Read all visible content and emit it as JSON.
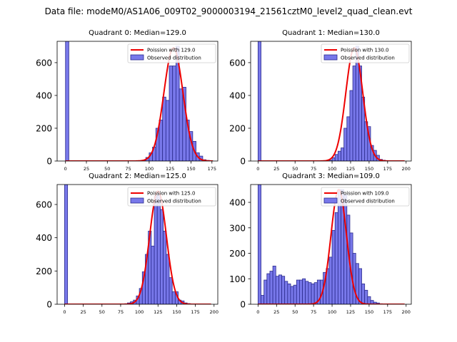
{
  "suptitle": "Data file: modeM0/AS1A06_009T02_9000003194_21561cztM0_level2_quad_clean.evt",
  "colors": {
    "bar_fill": "#7878ea",
    "bar_edge": "#2a2a8c",
    "line": "#ee0000"
  },
  "chart_data": [
    {
      "type": "bar",
      "title": "Quadrant 0: Median=129.0",
      "legend": {
        "line_label": "Poission with 129.0",
        "bar_label": "Observed distribution",
        "location": "upper right"
      },
      "xlim": [
        -10,
        182
      ],
      "ylim": [
        0,
        730
      ],
      "xticks": [
        0,
        25,
        50,
        75,
        100,
        125,
        150,
        175
      ],
      "yticks": [
        0,
        200,
        400,
        600
      ],
      "bin_width": 4,
      "bins": [
        {
          "x": 0,
          "count": 730
        },
        {
          "x": 92,
          "count": 5
        },
        {
          "x": 96,
          "count": 22
        },
        {
          "x": 100,
          "count": 50
        },
        {
          "x": 104,
          "count": 85
        },
        {
          "x": 108,
          "count": 200
        },
        {
          "x": 112,
          "count": 250
        },
        {
          "x": 116,
          "count": 390
        },
        {
          "x": 120,
          "count": 370
        },
        {
          "x": 124,
          "count": 580
        },
        {
          "x": 128,
          "count": 580
        },
        {
          "x": 132,
          "count": 700
        },
        {
          "x": 136,
          "count": 440
        },
        {
          "x": 140,
          "count": 450
        },
        {
          "x": 144,
          "count": 250
        },
        {
          "x": 148,
          "count": 180
        },
        {
          "x": 152,
          "count": 120
        },
        {
          "x": 156,
          "count": 50
        },
        {
          "x": 160,
          "count": 30
        },
        {
          "x": 164,
          "count": 8
        },
        {
          "x": 168,
          "count": 4
        },
        {
          "x": 172,
          "count": 2
        }
      ],
      "poisson": {
        "mean": 129.0,
        "peak": 690,
        "x_range": [
          0,
          176
        ]
      }
    },
    {
      "type": "bar",
      "title": "Quadrant 1: Median=130.0",
      "legend": {
        "line_label": "Poission with 130.0",
        "bar_label": "Observed distribution",
        "location": "upper right"
      },
      "xlim": [
        -10,
        207
      ],
      "ylim": [
        0,
        730
      ],
      "xticks": [
        0,
        25,
        50,
        75,
        100,
        125,
        150,
        175,
        200
      ],
      "yticks": [
        0,
        200,
        400,
        600
      ],
      "bin_width": 4,
      "bins": [
        {
          "x": 0,
          "count": 730
        },
        {
          "x": 96,
          "count": 5
        },
        {
          "x": 100,
          "count": 20
        },
        {
          "x": 104,
          "count": 40
        },
        {
          "x": 108,
          "count": 60
        },
        {
          "x": 112,
          "count": 80
        },
        {
          "x": 116,
          "count": 200
        },
        {
          "x": 120,
          "count": 270
        },
        {
          "x": 124,
          "count": 430
        },
        {
          "x": 128,
          "count": 580
        },
        {
          "x": 132,
          "count": 700
        },
        {
          "x": 136,
          "count": 580
        },
        {
          "x": 140,
          "count": 390
        },
        {
          "x": 144,
          "count": 240
        },
        {
          "x": 148,
          "count": 210
        },
        {
          "x": 152,
          "count": 95
        },
        {
          "x": 156,
          "count": 65
        },
        {
          "x": 160,
          "count": 35
        },
        {
          "x": 164,
          "count": 10
        },
        {
          "x": 168,
          "count": 5
        }
      ],
      "poisson": {
        "mean": 130.0,
        "peak": 690,
        "x_range": [
          0,
          198
        ]
      }
    },
    {
      "type": "bar",
      "title": "Quadrant 2: Median=125.0",
      "legend": {
        "line_label": "Poission with 125.0",
        "bar_label": "Observed distribution",
        "location": "upper right"
      },
      "xlim": [
        -10,
        205
      ],
      "ylim": [
        0,
        720
      ],
      "xticks": [
        0,
        25,
        50,
        75,
        100,
        125,
        150,
        175,
        200
      ],
      "yticks": [
        0,
        200,
        400,
        600
      ],
      "bin_width": 4,
      "bins": [
        {
          "x": 0,
          "count": 720
        },
        {
          "x": 80,
          "count": 3
        },
        {
          "x": 84,
          "count": 8
        },
        {
          "x": 88,
          "count": 15
        },
        {
          "x": 92,
          "count": 25
        },
        {
          "x": 96,
          "count": 50
        },
        {
          "x": 100,
          "count": 95
        },
        {
          "x": 104,
          "count": 195
        },
        {
          "x": 108,
          "count": 300
        },
        {
          "x": 112,
          "count": 440
        },
        {
          "x": 116,
          "count": 350
        },
        {
          "x": 120,
          "count": 650
        },
        {
          "x": 124,
          "count": 660
        },
        {
          "x": 128,
          "count": 570
        },
        {
          "x": 132,
          "count": 440
        },
        {
          "x": 136,
          "count": 300
        },
        {
          "x": 140,
          "count": 160
        },
        {
          "x": 144,
          "count": 75
        },
        {
          "x": 148,
          "count": 75
        },
        {
          "x": 152,
          "count": 25
        },
        {
          "x": 156,
          "count": 20
        },
        {
          "x": 160,
          "count": 8
        },
        {
          "x": 164,
          "count": 4
        },
        {
          "x": 168,
          "count": 2
        },
        {
          "x": 172,
          "count": 1
        }
      ],
      "poisson": {
        "mean": 125.0,
        "peak": 680,
        "x_range": [
          0,
          196
        ]
      }
    },
    {
      "type": "bar",
      "title": "Quadrant 3: Median=109.0",
      "legend": {
        "line_label": "Poission with 109.0",
        "bar_label": "Observed distribution",
        "location": "upper right"
      },
      "xlim": [
        -10,
        207
      ],
      "ylim": [
        0,
        470
      ],
      "xticks": [
        0,
        25,
        50,
        75,
        100,
        125,
        150,
        175,
        200
      ],
      "yticks": [
        0,
        100,
        200,
        300,
        400
      ],
      "bin_width": 4,
      "bins": [
        {
          "x": 0,
          "count": 470
        },
        {
          "x": 4,
          "count": 35
        },
        {
          "x": 8,
          "count": 95
        },
        {
          "x": 12,
          "count": 120
        },
        {
          "x": 16,
          "count": 130
        },
        {
          "x": 20,
          "count": 150
        },
        {
          "x": 24,
          "count": 110
        },
        {
          "x": 28,
          "count": 115
        },
        {
          "x": 32,
          "count": 110
        },
        {
          "x": 36,
          "count": 90
        },
        {
          "x": 40,
          "count": 80
        },
        {
          "x": 44,
          "count": 70
        },
        {
          "x": 48,
          "count": 75
        },
        {
          "x": 52,
          "count": 95
        },
        {
          "x": 56,
          "count": 95
        },
        {
          "x": 60,
          "count": 100
        },
        {
          "x": 64,
          "count": 90
        },
        {
          "x": 68,
          "count": 85
        },
        {
          "x": 72,
          "count": 80
        },
        {
          "x": 76,
          "count": 85
        },
        {
          "x": 80,
          "count": 95
        },
        {
          "x": 84,
          "count": 95
        },
        {
          "x": 88,
          "count": 125
        },
        {
          "x": 92,
          "count": 140
        },
        {
          "x": 96,
          "count": 185
        },
        {
          "x": 100,
          "count": 290
        },
        {
          "x": 104,
          "count": 360
        },
        {
          "x": 108,
          "count": 450
        },
        {
          "x": 112,
          "count": 450
        },
        {
          "x": 116,
          "count": 430
        },
        {
          "x": 120,
          "count": 350
        },
        {
          "x": 124,
          "count": 280
        },
        {
          "x": 128,
          "count": 200
        },
        {
          "x": 132,
          "count": 160
        },
        {
          "x": 136,
          "count": 140
        },
        {
          "x": 140,
          "count": 80
        },
        {
          "x": 144,
          "count": 55
        },
        {
          "x": 148,
          "count": 30
        },
        {
          "x": 152,
          "count": 15
        },
        {
          "x": 156,
          "count": 8
        },
        {
          "x": 160,
          "count": 5
        },
        {
          "x": 164,
          "count": 2
        }
      ],
      "poisson": {
        "mean": 109.0,
        "peak": 450,
        "x_range": [
          0,
          198
        ]
      }
    }
  ]
}
